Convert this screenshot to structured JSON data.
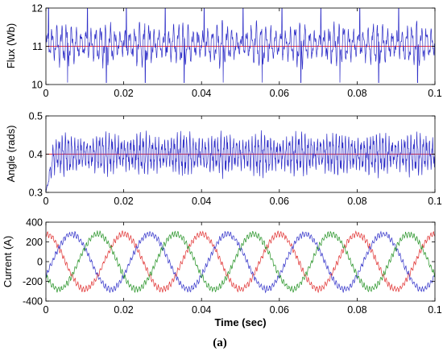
{
  "chart_data": [
    {
      "type": "line",
      "ylabel": "Flux (Wb)",
      "xlabel": "",
      "xlim": [
        0,
        0.1
      ],
      "ylim": [
        10,
        12
      ],
      "x_ticks": [
        "0",
        "0.02",
        "0.04",
        "0.06",
        "0.08",
        "0.1"
      ],
      "y_ticks": [
        "10",
        "11",
        "12"
      ],
      "series": [
        {
          "role": "reference",
          "color": "#ff3030",
          "x": [
            0,
            0.1
          ],
          "y": [
            11,
            11
          ]
        },
        {
          "role": "estimated",
          "color": "#3030c8",
          "signal": {
            "kind": "ripple",
            "mean": 11.05,
            "amplitude": 0.55,
            "period": 0.00125,
            "envelope_period": 0.01,
            "envelope_depth": 0.45,
            "spike_to": 12.0,
            "dip_to": 10.0,
            "spike_period": 0.01
          }
        }
      ]
    },
    {
      "type": "line",
      "ylabel": "Angle (rads)",
      "xlabel": "",
      "xlim": [
        0,
        0.1
      ],
      "ylim": [
        0.3,
        0.5
      ],
      "x_ticks": [
        "0",
        "0.02",
        "0.04",
        "0.06",
        "0.08",
        "0.1"
      ],
      "y_ticks": [
        "0.3",
        "0.4",
        "0.5"
      ],
      "series": [
        {
          "role": "reference",
          "color": "#ff3030",
          "x": [
            0,
            0.1
          ],
          "y": [
            0.4,
            0.4
          ]
        },
        {
          "role": "estimated",
          "color": "#3030c8",
          "signal": {
            "kind": "ripple",
            "mean": 0.4,
            "amplitude": 0.055,
            "period": 0.0008,
            "envelope_period": 0.01,
            "envelope_depth": 0.35,
            "start_value": 0.3,
            "rise_time": 0.002
          }
        }
      ]
    },
    {
      "type": "line",
      "ylabel": "Current (A)",
      "xlabel": "Time (sec)",
      "xlim": [
        0,
        0.1
      ],
      "ylim": [
        -400,
        400
      ],
      "x_ticks": [
        "0",
        "0.02",
        "0.04",
        "0.06",
        "0.08",
        "0.1"
      ],
      "y_ticks": [
        "400",
        "200",
        "0",
        "-200",
        "-400"
      ],
      "series": [
        {
          "role": "phase-a",
          "color": "#e03030",
          "signal": {
            "kind": "sine",
            "amplitude": 280,
            "frequency": 50,
            "phase_deg": 90,
            "ripple": 25
          }
        },
        {
          "role": "phase-b",
          "color": "#3030c8",
          "signal": {
            "kind": "sine",
            "amplitude": 280,
            "frequency": 50,
            "phase_deg": -30,
            "ripple": 25
          }
        },
        {
          "role": "phase-c",
          "color": "#209020",
          "signal": {
            "kind": "sine",
            "amplitude": 280,
            "frequency": 50,
            "phase_deg": 210,
            "ripple": 25
          }
        }
      ]
    }
  ],
  "caption": "(a)"
}
